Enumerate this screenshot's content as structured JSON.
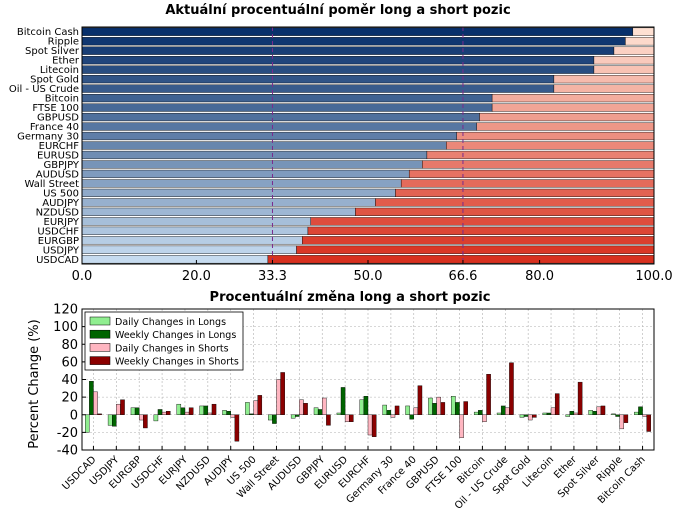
{
  "chart_data": [
    {
      "type": "bar",
      "orientation": "horizontal",
      "stacked": true,
      "title": "Aktuální procentuální poměr long a short pozic",
      "categories": [
        "Bitcoin Cash",
        "Ripple",
        "Spot Silver",
        "Ether",
        "Litecoin",
        "Spot Gold",
        "Oil - US Crude",
        "Bitcoin",
        "FTSE 100",
        "GBPUSD",
        "France 40",
        "Germany 30",
        "EURCHF",
        "EURUSD",
        "GBPJPY",
        "AUDUSD",
        "Wall Street",
        "US 500",
        "AUDJPY",
        "NZDUSD",
        "EURJPY",
        "USDCHF",
        "EURGBP",
        "USDJPY",
        "USDCAD"
      ],
      "long_percent": [
        96.3,
        95.0,
        93.0,
        89.5,
        89.5,
        82.5,
        82.5,
        71.7,
        71.7,
        69.5,
        69.0,
        65.5,
        63.7,
        60.3,
        59.5,
        57.2,
        55.8,
        54.8,
        51.3,
        47.8,
        40.0,
        39.5,
        38.5,
        37.5,
        32.5
      ],
      "xticks": [
        0.0,
        20.0,
        33.3,
        50.0,
        66.6,
        80.0,
        100.0
      ],
      "xtick_labels": [
        "0.0",
        "20.0",
        "33.3",
        "50.0",
        "66.6",
        "80.0",
        "100.0"
      ],
      "highlight_ticks": [
        "33.3",
        "66.6"
      ],
      "xlim": [
        0,
        100
      ],
      "colors": {
        "long_dark": "#08306b",
        "long_light": "#c6dbef",
        "short_light": "#fee0d2",
        "short_dark": "#d7301f",
        "highlight": "#7b2a8e"
      }
    },
    {
      "type": "bar",
      "title": "Procentuální změna long a short pozic",
      "ylabel": "Percent Change (%)",
      "ylim": [
        -40,
        120
      ],
      "yticks": [
        -40,
        -20,
        0,
        20,
        40,
        60,
        80,
        100,
        120
      ],
      "grid": true,
      "legend_position": "top-left",
      "categories": [
        "USDCAD",
        "USDJPY",
        "EURGBP",
        "USDCHF",
        "EURJPY",
        "NZDUSD",
        "AUDJPY",
        "US 500",
        "Wall Street",
        "AUDUSD",
        "GBPJPY",
        "EURUSD",
        "EURCHF",
        "Germany 30",
        "France 40",
        "GBPUSD",
        "FTSE 100",
        "Bitcoin",
        "Oil - US Crude",
        "Spot Gold",
        "Litecoin",
        "Ether",
        "Spot Silver",
        "Ripple",
        "Bitcoin Cash"
      ],
      "series": [
        {
          "name": "Daily Changes in Longs",
          "color": "#90ee90",
          "values": [
            -20,
            -12,
            8,
            -7,
            12,
            10,
            5,
            14,
            -6,
            -4,
            8,
            2,
            17,
            11,
            10,
            19,
            21,
            3,
            2,
            -3,
            2,
            -2,
            5,
            1,
            3
          ]
        },
        {
          "name": "Weekly Changes in Longs",
          "color": "#006400",
          "values": [
            38,
            -13,
            8,
            6,
            8,
            10,
            4,
            1,
            -10,
            -2,
            6,
            31,
            21,
            5,
            -5,
            13,
            14,
            5,
            10,
            -2,
            2,
            4,
            4,
            -2,
            9
          ]
        },
        {
          "name": "Daily Changes in Shorts",
          "color": "#ffb6c1",
          "values": [
            26,
            12,
            -6,
            3,
            3,
            2,
            -3,
            16,
            40,
            17,
            19,
            -8,
            -23,
            -3,
            8,
            20,
            -26,
            -8,
            8,
            -6,
            8,
            2,
            9,
            -16,
            -2
          ]
        },
        {
          "name": "Weekly Changes in Shorts",
          "color": "#8b0000",
          "values": [
            1,
            17,
            -15,
            4,
            8,
            12,
            -30,
            22,
            48,
            13,
            -12,
            -8,
            -25,
            10,
            33,
            14,
            15,
            46,
            59,
            -3,
            24,
            37,
            10,
            -9,
            -19
          ]
        }
      ]
    }
  ]
}
